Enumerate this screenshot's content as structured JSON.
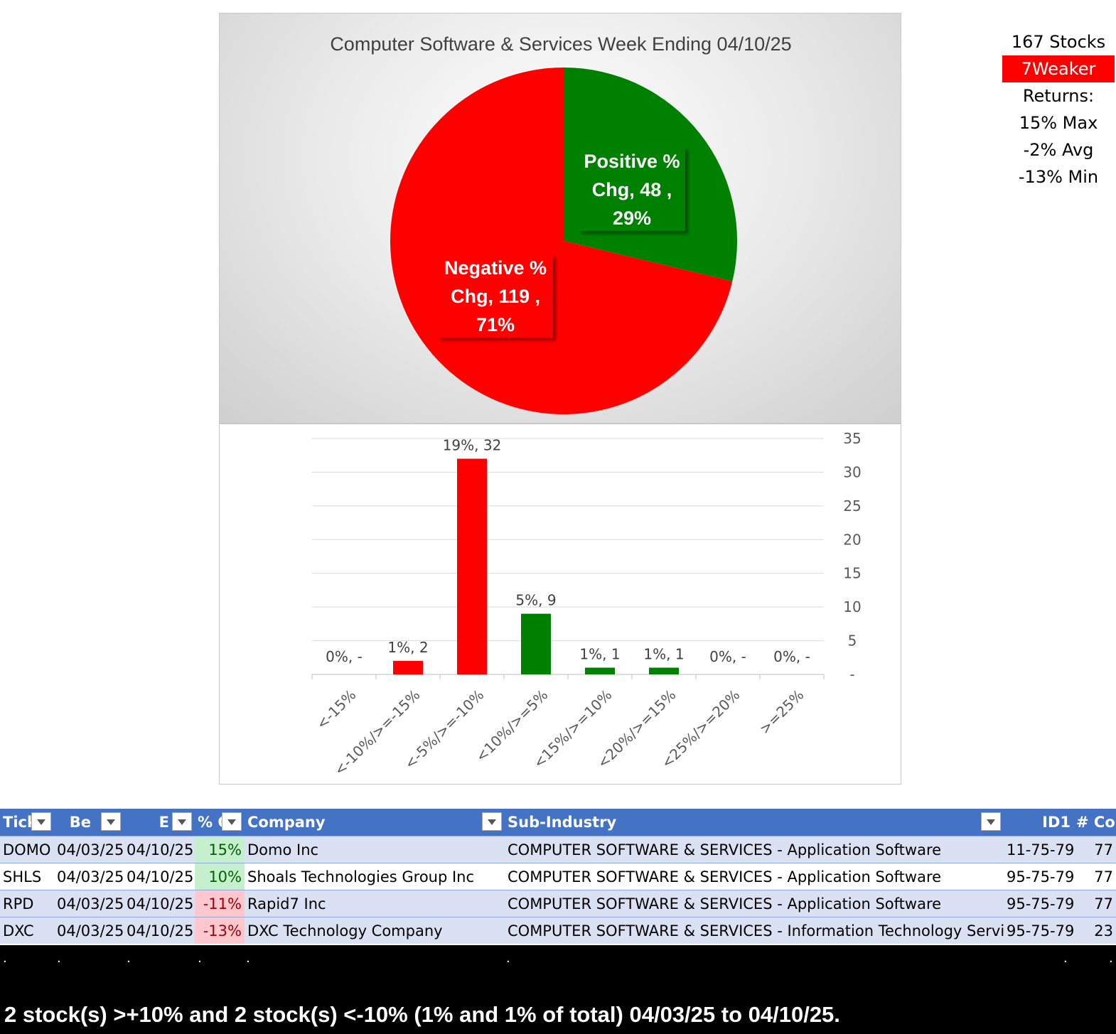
{
  "chart_data": [
    {
      "type": "pie",
      "title": "Computer Software & Services Week Ending 04/10/25",
      "slices": [
        {
          "label_lines": [
            "Positive %",
            "Chg,  48 ,",
            "29%"
          ],
          "value": 48,
          "percent": 29,
          "color": "#008000"
        },
        {
          "label_lines": [
            "Negative %",
            "Chg,  119 ,",
            "71%"
          ],
          "value": 119,
          "percent": 71,
          "color": "#ff0000"
        }
      ]
    },
    {
      "type": "bar",
      "categories": [
        "<-15%",
        "<-10%/>=-15%",
        "<-5%/>=-10%",
        "<10%/>=5%",
        "<15%/>=10%",
        "<20%/>=15%",
        "<25%/>=20%",
        ">=25%"
      ],
      "values": [
        0,
        2,
        32,
        9,
        1,
        1,
        0,
        0
      ],
      "data_labels": [
        "0%,  -",
        "1%,  2",
        "19%,  32",
        "5%,  9",
        "1%,  1",
        "1%,  1",
        "0%,  -",
        "0%,  -"
      ],
      "colors": [
        "#ff0000",
        "#ff0000",
        "#ff0000",
        "#008000",
        "#008000",
        "#008000",
        "#008000",
        "#008000"
      ],
      "yticks": [
        "-",
        "5",
        "10",
        "15",
        "20",
        "25",
        "30",
        "35"
      ],
      "ylim": [
        0,
        35
      ],
      "grid": true,
      "y_axis_side": "right"
    }
  ],
  "stats": {
    "stocks": "167 Stocks",
    "weaker": "7Weaker",
    "returns_label": "Returns:",
    "max": "15% Max",
    "avg": "-2% Avg",
    "min": "-13% Min"
  },
  "table": {
    "headers": [
      "Tick",
      "Be",
      "E",
      "% C",
      "Company",
      "Sub-Industry",
      "ID1",
      "# Cos"
    ],
    "rows": [
      [
        "DOMO",
        "04/03/25",
        "04/10/25",
        "15%",
        "Domo Inc",
        "COMPUTER SOFTWARE & SERVICES - Application Software",
        "11-75-79",
        "77"
      ],
      [
        "SHLS",
        "04/03/25",
        "04/10/25",
        "10%",
        "Shoals Technologies Group Inc",
        "COMPUTER SOFTWARE & SERVICES - Application Software",
        "95-75-79",
        "77"
      ],
      [
        "RPD",
        "04/03/25",
        "04/10/25",
        "-11%",
        "Rapid7 Inc",
        "COMPUTER SOFTWARE & SERVICES - Application Software",
        "95-75-79",
        "77"
      ],
      [
        "DXC",
        "04/03/25",
        "04/10/25",
        "-13%",
        "DXC Technology Company",
        "COMPUTER SOFTWARE & SERVICES - Information Technology Services",
        "95-75-79",
        "23"
      ]
    ]
  },
  "footer": {
    "summary": "2 stock(s) >+10% and 2 stock(s) <-10% (1% and 1% of total) 04/03/25 to 04/10/25."
  }
}
